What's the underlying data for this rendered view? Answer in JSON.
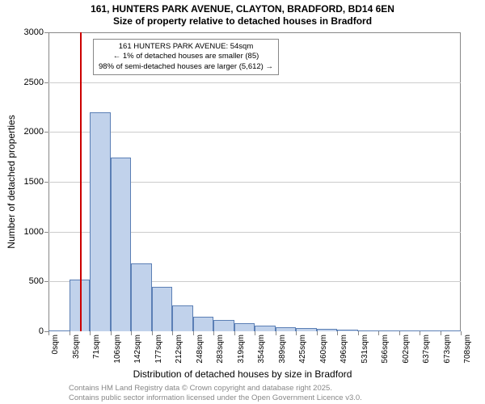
{
  "title": "161, HUNTERS PARK AVENUE, CLAYTON, BRADFORD, BD14 6EN",
  "subtitle": "Size of property relative to detached houses in Bradford",
  "x_axis_title": "Distribution of detached houses by size in Bradford",
  "y_axis_title": "Number of detached properties",
  "chart": {
    "type": "histogram",
    "ylim": [
      0,
      3000
    ],
    "ytick_step": 500,
    "x_labels": [
      "0sqm",
      "35sqm",
      "71sqm",
      "106sqm",
      "142sqm",
      "177sqm",
      "212sqm",
      "248sqm",
      "283sqm",
      "319sqm",
      "354sqm",
      "389sqm",
      "425sqm",
      "460sqm",
      "496sqm",
      "531sqm",
      "566sqm",
      "602sqm",
      "637sqm",
      "673sqm",
      "708sqm"
    ],
    "values": [
      0,
      520,
      2200,
      1740,
      680,
      450,
      260,
      150,
      110,
      80,
      60,
      40,
      30,
      25,
      20,
      10,
      8,
      5,
      3,
      2
    ],
    "bar_fill": "#c1d2eb",
    "bar_stroke": "#5b7fb5",
    "grid_color": "#cccccc",
    "border_color": "#888888",
    "background_color": "#ffffff"
  },
  "reference_line": {
    "position_sqm": 54,
    "color": "#cc0000"
  },
  "annotation": {
    "line1": "161 HUNTERS PARK AVENUE: 54sqm",
    "line2": "← 1% of detached houses are smaller (85)",
    "line3": "98% of semi-detached houses are larger (5,612) →"
  },
  "attribution": {
    "line1": "Contains HM Land Registry data © Crown copyright and database right 2025.",
    "line2": "Contains public sector information licensed under the Open Government Licence v3.0."
  }
}
